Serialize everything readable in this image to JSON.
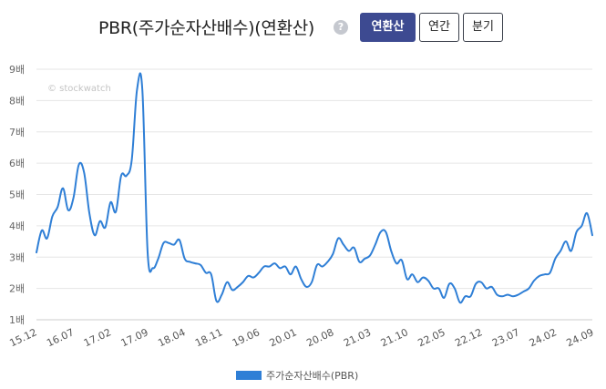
{
  "header": {
    "title": "PBR(주가순자산배수)(연환산)",
    "help_icon": "?",
    "buttons": [
      {
        "label": "연환산",
        "active": true
      },
      {
        "label": "연간",
        "active": false
      },
      {
        "label": "분기",
        "active": false
      }
    ]
  },
  "watermark": "© stockwatch",
  "chart_data": {
    "type": "line",
    "title": "PBR(주가순자산배수)(연환산)",
    "y_ticks": [
      "1배",
      "2배",
      "3배",
      "4배",
      "5배",
      "6배",
      "7배",
      "8배",
      "9배"
    ],
    "ylim": [
      1,
      9
    ],
    "x_ticks": [
      "15.12",
      "16.07",
      "17.02",
      "17.09",
      "18.04",
      "18.11",
      "19.06",
      "20.01",
      "20.08",
      "21.03",
      "21.10",
      "22.05",
      "22.12",
      "23.07",
      "24.02",
      "24.09"
    ],
    "grid": true,
    "legend_position": "bottom",
    "color": "#2f7fd6",
    "series": [
      {
        "name": "주가순자산배수(PBR)",
        "x": [
          "15.12",
          "16.01",
          "16.02",
          "16.03",
          "16.04",
          "16.05",
          "16.06",
          "16.07",
          "16.08",
          "16.09",
          "16.10",
          "16.11",
          "16.12",
          "17.01",
          "17.02",
          "17.03",
          "17.04",
          "17.05",
          "17.06",
          "17.07",
          "17.08",
          "17.09",
          "17.10",
          "17.11",
          "17.12",
          "18.01",
          "18.02",
          "18.03",
          "18.04",
          "18.05",
          "18.06",
          "18.07",
          "18.08",
          "18.09",
          "18.10",
          "18.11",
          "18.12",
          "19.01",
          "19.02",
          "19.03",
          "19.04",
          "19.05",
          "19.06",
          "19.07",
          "19.08",
          "19.09",
          "19.10",
          "19.11",
          "19.12",
          "20.01",
          "20.02",
          "20.03",
          "20.04",
          "20.05",
          "20.06",
          "20.07",
          "20.08",
          "20.09",
          "20.10",
          "20.11",
          "20.12",
          "21.01",
          "21.02",
          "21.03",
          "21.04",
          "21.05",
          "21.06",
          "21.07",
          "21.08",
          "21.09",
          "21.10",
          "21.11",
          "21.12",
          "22.01",
          "22.02",
          "22.03",
          "22.04",
          "22.05",
          "22.06",
          "22.07",
          "22.08",
          "22.09",
          "22.10",
          "22.11",
          "22.12",
          "23.01",
          "23.02",
          "23.03",
          "23.04",
          "23.05",
          "23.06",
          "23.07",
          "23.08",
          "23.09",
          "23.10",
          "23.11",
          "23.12",
          "24.01",
          "24.02",
          "24.03",
          "24.04",
          "24.05",
          "24.06",
          "24.07",
          "24.08",
          "24.09"
        ],
        "values": [
          3.15,
          3.85,
          3.6,
          4.3,
          4.6,
          5.2,
          4.5,
          4.9,
          5.95,
          5.7,
          4.4,
          3.7,
          4.15,
          3.95,
          4.75,
          4.45,
          5.6,
          5.6,
          6.1,
          8.35,
          8.35,
          3.15,
          2.65,
          2.95,
          3.45,
          3.45,
          3.4,
          3.55,
          2.95,
          2.85,
          2.8,
          2.75,
          2.5,
          2.45,
          1.6,
          1.8,
          2.2,
          1.95,
          2.05,
          2.2,
          2.4,
          2.35,
          2.5,
          2.7,
          2.7,
          2.8,
          2.65,
          2.7,
          2.45,
          2.7,
          2.3,
          2.05,
          2.2,
          2.75,
          2.7,
          2.85,
          3.1,
          3.6,
          3.4,
          3.2,
          3.3,
          2.85,
          2.95,
          3.05,
          3.4,
          3.8,
          3.8,
          3.2,
          2.8,
          2.9,
          2.3,
          2.45,
          2.2,
          2.35,
          2.25,
          2.0,
          2.0,
          1.7,
          2.15,
          2.0,
          1.55,
          1.75,
          1.75,
          2.15,
          2.2,
          2.0,
          2.05,
          1.8,
          1.75,
          1.8,
          1.75,
          1.8,
          1.9,
          2.0,
          2.25,
          2.4,
          2.45,
          2.5,
          2.95,
          3.2,
          3.5,
          3.2,
          3.8,
          4.0,
          4.4,
          3.7
        ]
      }
    ]
  }
}
